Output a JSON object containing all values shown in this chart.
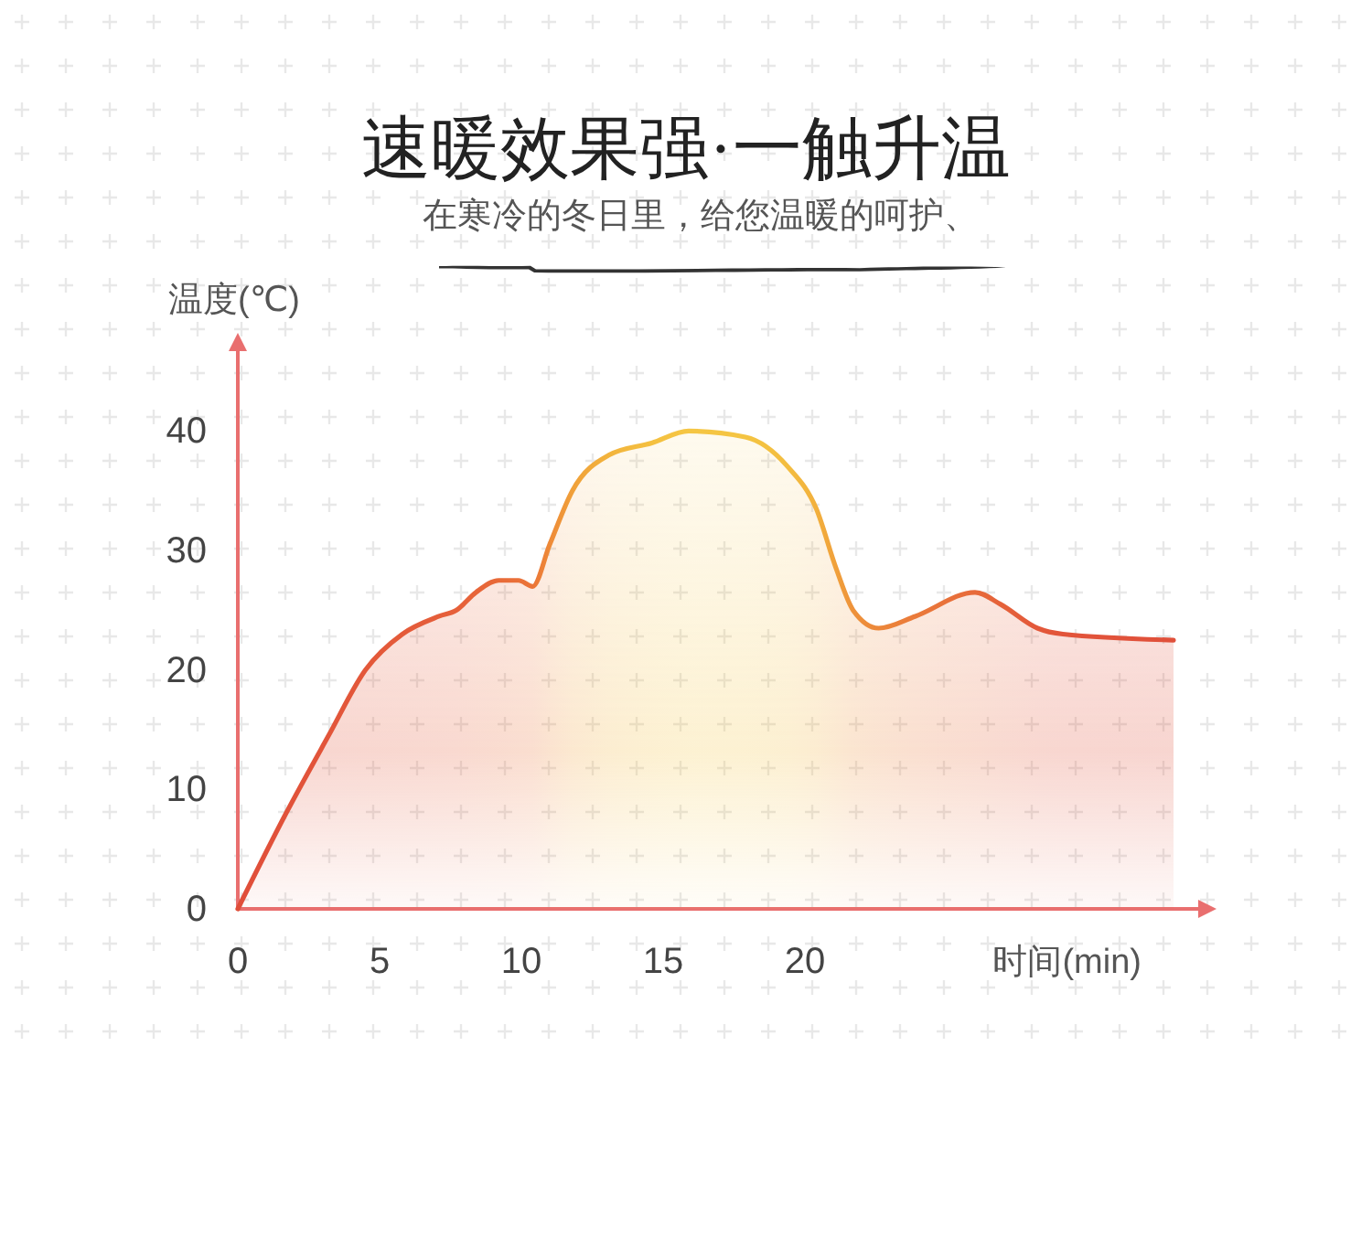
{
  "chart_data": {
    "type": "area",
    "title": "速暖效果强·一触升温",
    "subtitle": "在寒冷的冬日里，给您温暖的呵护、",
    "xlabel": "时间(min)",
    "ylabel": "温度(℃)",
    "x": [
      0,
      1.7,
      3.2,
      4.5,
      5.8,
      7.1,
      7.7,
      8.4,
      9.2,
      9.9,
      10.4,
      11.0,
      11.8,
      13.1,
      14.6,
      15.9,
      17.9,
      19.4,
      20.4,
      21.1,
      21.7,
      22.6,
      23.9,
      26.0,
      26.9,
      28.2,
      29.1,
      33.0
    ],
    "series": [
      {
        "values": [
          0,
          8,
          14.5,
          20,
          23,
          24.5,
          25,
          26.5,
          27.5,
          27.5,
          27,
          30.5,
          35,
          38,
          39,
          40,
          39.5,
          37,
          33.5,
          28.5,
          25,
          23.5,
          24.5,
          26.5,
          25.5,
          23.5,
          23,
          22.5
        ],
        "colors": [
          "#e04e3a",
          "#e1523a",
          "#e2553a",
          "#e3583a",
          "#e45b3a",
          "#e55e3a",
          "#e6603a",
          "#e76539",
          "#e86a38",
          "#ea7038",
          "#eb7538",
          "#ee8a38",
          "#f0a03a",
          "#f2b43d",
          "#f4c040",
          "#f5c644",
          "#f4c442",
          "#f3bd40",
          "#f2b03d",
          "#f0a03b",
          "#ee923a",
          "#ec873a",
          "#ea7a3a",
          "#e76a3a",
          "#e5623a",
          "#e3583a",
          "#e2543a",
          "#e0503a"
        ]
      }
    ],
    "xlim": [
      0,
      34
    ],
    "xticks": [
      0,
      5,
      10,
      15,
      20
    ],
    "ylim": [
      0,
      47
    ],
    "yticks": [
      0,
      10,
      20,
      30,
      40
    ]
  }
}
